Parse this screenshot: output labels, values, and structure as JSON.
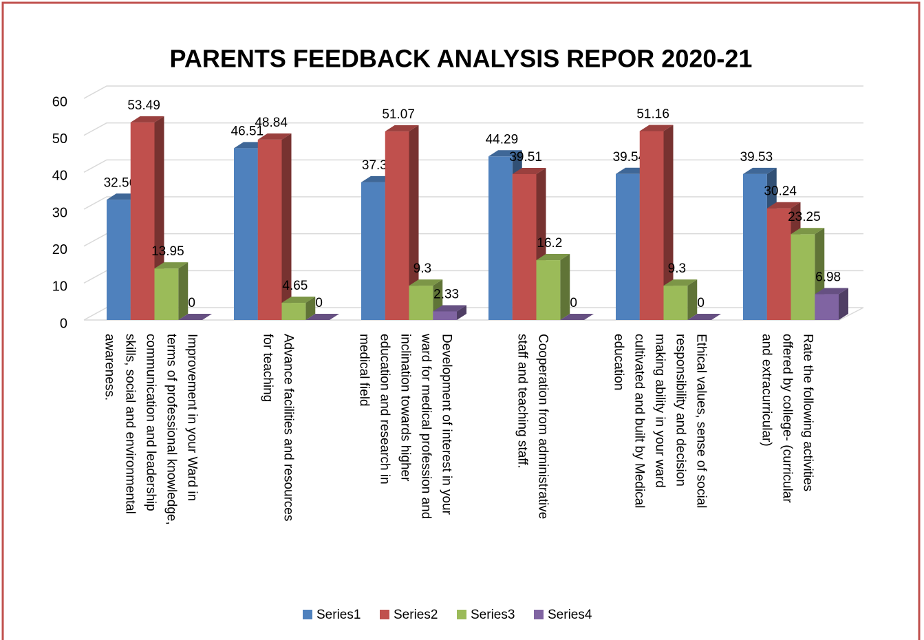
{
  "chart_data": {
    "type": "bar3d",
    "title": "PARENTS FEEDBACK ANALYSIS REPOR 2020-21",
    "categories": [
      "Improvement in your Ward in terms of professional knowledge, communication and leadership skills, social and environmental awareness.",
      "Advance facilities and resources for teaching",
      "Development of interest in your ward for medical profession and inclination towards higher education and research in medical field",
      "Cooperation from administrative staff and teaching staff.",
      "Ethical values, sense of social responsibility and decision making ability in your ward cultivated and built by Medical education",
      "Rate the following activities offered by college- (curricular and extracurricular)"
    ],
    "series": [
      {
        "name": "Series1",
        "color": "#4f81bd",
        "values": [
          32.56,
          46.51,
          37.3,
          44.29,
          39.54,
          39.53
        ]
      },
      {
        "name": "Series2",
        "color": "#c0504d",
        "values": [
          53.49,
          48.84,
          51.07,
          39.51,
          51.16,
          30.24
        ]
      },
      {
        "name": "Series3",
        "color": "#9bbb59",
        "values": [
          13.95,
          4.65,
          9.3,
          16.2,
          9.3,
          23.25
        ]
      },
      {
        "name": "Series4",
        "color": "#8064a2",
        "values": [
          0,
          0,
          2.33,
          0,
          0,
          6.98
        ]
      }
    ],
    "ylim": [
      0,
      60
    ],
    "yticks": [
      0,
      10,
      20,
      30,
      40,
      50,
      60
    ],
    "grid": true,
    "legend": "bottom"
  }
}
